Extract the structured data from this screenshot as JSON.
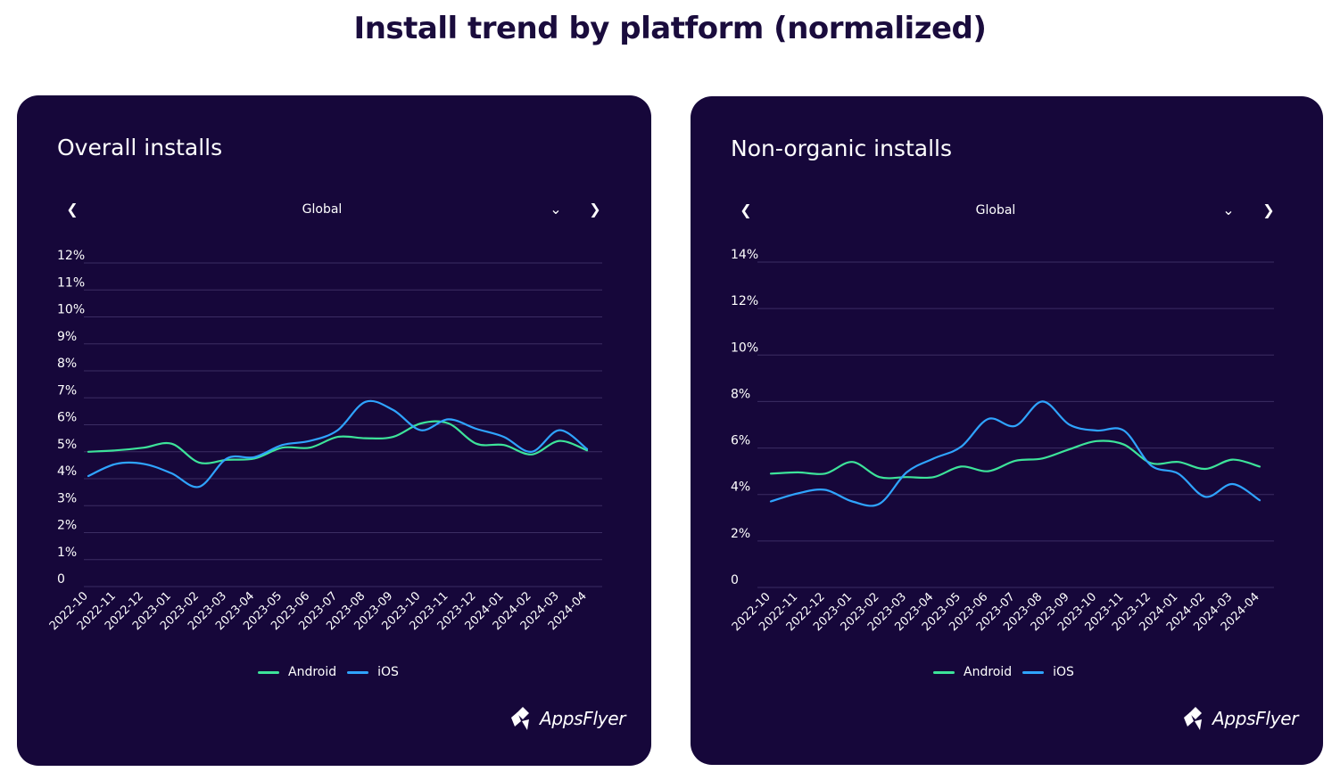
{
  "page": {
    "title": "Install trend by platform (normalized)"
  },
  "colors": {
    "background": "#16073a",
    "android": "#3de39a",
    "ios": "#2fa4ff",
    "grid": "#3b2d63",
    "text": "#ffffff"
  },
  "charts": [
    {
      "title": "Overall installs",
      "filter": {
        "selected": "Global",
        "prev_icon": "chevron-left-icon",
        "next_icon": "chevron-right-icon",
        "dropdown_icon": "chevron-down-icon"
      },
      "logo": {
        "text": "AppsFlyer",
        "icon": "appsflyer-logo-icon"
      }
    },
    {
      "title": "Non-organic installs",
      "filter": {
        "selected": "Global",
        "prev_icon": "chevron-left-icon",
        "next_icon": "chevron-right-icon",
        "dropdown_icon": "chevron-down-icon"
      },
      "logo": {
        "text": "AppsFlyer",
        "icon": "appsflyer-logo-icon"
      }
    }
  ],
  "chart_data": [
    {
      "type": "line",
      "title": "Overall installs",
      "categories": [
        "2022-10",
        "2022-11",
        "2022-12",
        "2023-01",
        "2023-02",
        "2023-03",
        "2023-04",
        "2023-05",
        "2023-06",
        "2023-07",
        "2023-08",
        "2023-09",
        "2023-10",
        "2023-11",
        "2023-12",
        "2024-01",
        "2024-02",
        "2024-03",
        "2024-04"
      ],
      "series": [
        {
          "name": "Android",
          "color": "#3de39a",
          "values": [
            5.0,
            5.05,
            5.15,
            5.3,
            4.6,
            4.7,
            4.75,
            5.15,
            5.15,
            5.55,
            5.5,
            5.55,
            6.05,
            6.05,
            5.3,
            5.25,
            4.9,
            5.4,
            5.05
          ]
        },
        {
          "name": "iOS",
          "color": "#2fa4ff",
          "values": [
            4.1,
            4.55,
            4.55,
            4.2,
            3.7,
            4.75,
            4.8,
            5.25,
            5.4,
            5.8,
            6.85,
            6.55,
            5.8,
            6.2,
            5.85,
            5.55,
            5.0,
            5.8,
            5.1
          ]
        }
      ],
      "y_ticks": [
        0,
        1,
        2,
        3,
        4,
        5,
        6,
        7,
        8,
        9,
        10,
        11,
        12
      ],
      "y_tick_labels": [
        "0",
        "1%",
        "2%",
        "3%",
        "4%",
        "5%",
        "6%",
        "7%",
        "8%",
        "9%",
        "10%",
        "11%",
        "12%"
      ],
      "ylim": [
        0,
        12
      ],
      "grid": true,
      "legend": "bottom-center"
    },
    {
      "type": "line",
      "title": "Non-organic installs",
      "categories": [
        "2022-10",
        "2022-11",
        "2022-12",
        "2023-01",
        "2023-02",
        "2023-03",
        "2023-04",
        "2023-05",
        "2023-06",
        "2023-07",
        "2023-08",
        "2023-09",
        "2023-10",
        "2023-11",
        "2023-12",
        "2024-01",
        "2024-02",
        "2024-03",
        "2024-04"
      ],
      "series": [
        {
          "name": "Android",
          "color": "#3de39a",
          "values": [
            4.9,
            4.95,
            4.9,
            5.4,
            4.75,
            4.75,
            4.75,
            5.2,
            5.0,
            5.45,
            5.55,
            5.95,
            6.3,
            6.15,
            5.35,
            5.4,
            5.1,
            5.5,
            5.2
          ]
        },
        {
          "name": "iOS",
          "color": "#2fa4ff",
          "values": [
            3.7,
            4.05,
            4.2,
            3.7,
            3.6,
            4.95,
            5.55,
            6.05,
            7.25,
            6.95,
            8.0,
            7.0,
            6.75,
            6.75,
            5.25,
            4.9,
            3.9,
            4.45,
            3.75
          ]
        }
      ],
      "y_ticks": [
        0,
        2,
        4,
        6,
        8,
        10,
        12,
        14
      ],
      "y_tick_labels": [
        "0",
        "2%",
        "4%",
        "6%",
        "8%",
        "10%",
        "12%",
        "14%"
      ],
      "ylim": [
        0,
        14
      ],
      "grid": true,
      "legend": "bottom-center"
    }
  ]
}
